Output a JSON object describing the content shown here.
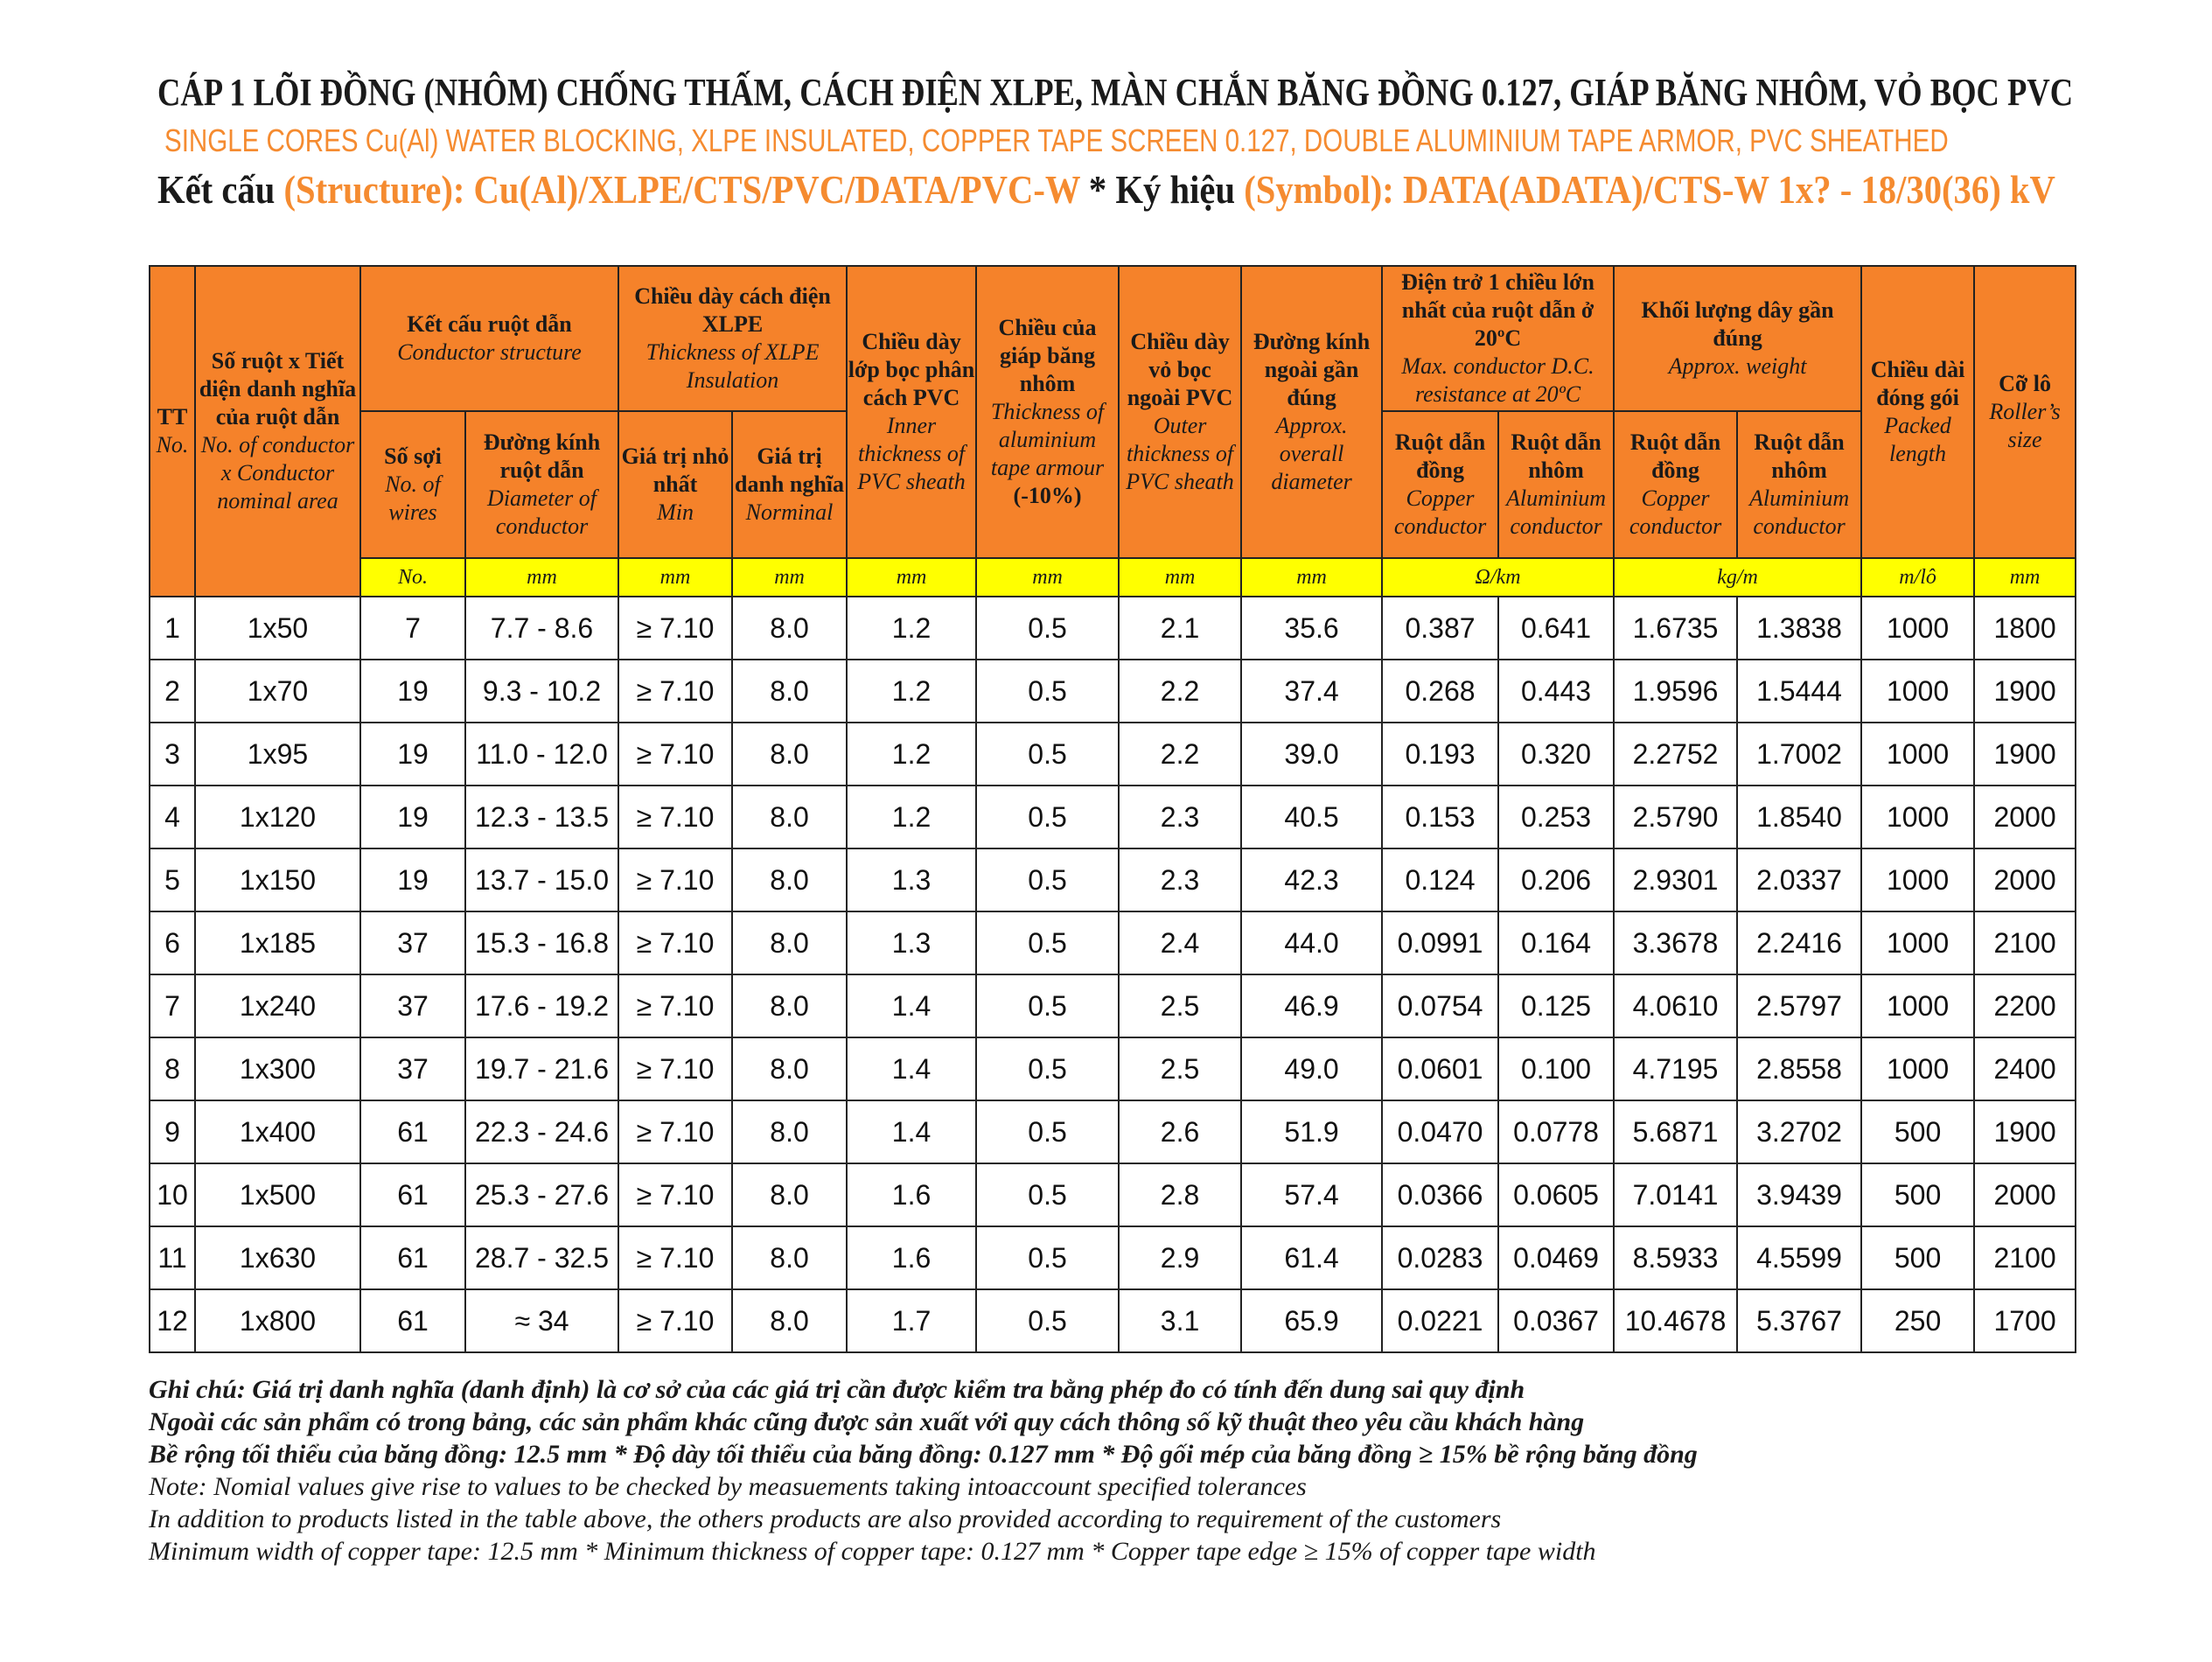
{
  "header": {
    "title": "CÁP 1 LÕI ĐỒNG (NHÔM) CHỐNG THẤM, CÁCH ĐIỆN XLPE, MÀN CHẮN BĂNG ĐỒNG 0.127, GIÁP BĂNG NHÔM,  VỎ BỌC PVC",
    "subtitle": "SINGLE CORES Cu(Al) WATER BLOCKING, XLPE INSULATED, COPPER TAPE SCREEN 0.127, DOUBLE ALUMINIUM TAPE ARMOR,  PVC SHEATHED",
    "structure_label": "Kết cấu ",
    "structure_value": "(Structure): Cu(Al)/XLPE/CTS/PVC/DATA/PVC-W",
    "separator": " * ",
    "symbol_label": " Ký hiệu ",
    "symbol_value": "(Symbol): DATA(ADATA)/CTS-W 1x? - 18/30(36) kV"
  },
  "table": {
    "columns": [
      {
        "vi": "TT",
        "en": "No."
      },
      {
        "vi": "Số ruột x Tiết diện danh nghĩa của ruột dẫn",
        "en": "No. of conductor x Conductor nominal area"
      },
      {
        "vi": "Kết cấu ruột dẫn",
        "en": "Conductor structure"
      },
      {
        "vi": "Chiều dày cách điện XLPE",
        "en": "Thickness of XLPE Insulation"
      },
      {
        "vi": "Chiều dày lớp bọc phân cách PVC",
        "en": "Inner thickness of PVC sheath"
      },
      {
        "vi": "Chiều của giáp băng nhôm",
        "en": "Thickness of aluminium tape armour",
        "tolerance": "(-10%)"
      },
      {
        "vi": "Chiều dày vỏ bọc ngoài PVC",
        "en": "Outer thickness of PVC sheath"
      },
      {
        "vi": "Đường kính ngoài gần đúng",
        "en": "Approx. overall diameter"
      },
      {
        "vi": "Điện trở 1 chiều lớn nhất của ruột dẫn ở 20ºC",
        "en": "Max. conductor D.C. resistance at 20ºC"
      },
      {
        "vi": "Khối lượng dây gần đúng",
        "en": "Approx. weight"
      },
      {
        "vi": "Chiều dài đóng gói",
        "en": "Packed length"
      },
      {
        "vi": "Cỡ lô",
        "en": "Roller’s size"
      }
    ],
    "subcolumns": [
      {
        "vi": "Số sợi",
        "en": "No. of wires"
      },
      {
        "vi": "Đường kính ruột dẫn",
        "en": "Diameter of conductor"
      },
      {
        "vi": "Giá trị nhỏ nhất",
        "en": "Min"
      },
      {
        "vi": "Giá trị danh nghĩa",
        "en": "Norminal"
      },
      {
        "vi": "Ruột dẫn đồng",
        "en": "Copper conductor"
      },
      {
        "vi": "Ruột dẫn nhôm",
        "en": "Aluminium conductor"
      },
      {
        "vi": "Ruột dẫn đồng",
        "en": "Copper conductor"
      },
      {
        "vi": "Ruột dẫn nhôm",
        "en": "Aluminium conductor"
      }
    ],
    "units": [
      "No.",
      "mm",
      "mm",
      "mm",
      "mm",
      "mm",
      "mm",
      "mm",
      "Ω/km",
      "kg/m",
      "m/lô",
      "mm"
    ],
    "rows": [
      [
        "1",
        "1x50",
        "7",
        "7.7 - 8.6",
        "≥ 7.10",
        "8.0",
        "1.2",
        "0.5",
        "2.1",
        "35.6",
        "0.387",
        "0.641",
        "1.6735",
        "1.3838",
        "1000",
        "1800"
      ],
      [
        "2",
        "1x70",
        "19",
        "9.3 - 10.2",
        "≥ 7.10",
        "8.0",
        "1.2",
        "0.5",
        "2.2",
        "37.4",
        "0.268",
        "0.443",
        "1.9596",
        "1.5444",
        "1000",
        "1900"
      ],
      [
        "3",
        "1x95",
        "19",
        "11.0 - 12.0",
        "≥ 7.10",
        "8.0",
        "1.2",
        "0.5",
        "2.2",
        "39.0",
        "0.193",
        "0.320",
        "2.2752",
        "1.7002",
        "1000",
        "1900"
      ],
      [
        "4",
        "1x120",
        "19",
        "12.3 - 13.5",
        "≥ 7.10",
        "8.0",
        "1.2",
        "0.5",
        "2.3",
        "40.5",
        "0.153",
        "0.253",
        "2.5790",
        "1.8540",
        "1000",
        "2000"
      ],
      [
        "5",
        "1x150",
        "19",
        "13.7 - 15.0",
        "≥ 7.10",
        "8.0",
        "1.3",
        "0.5",
        "2.3",
        "42.3",
        "0.124",
        "0.206",
        "2.9301",
        "2.0337",
        "1000",
        "2000"
      ],
      [
        "6",
        "1x185",
        "37",
        "15.3 - 16.8",
        "≥ 7.10",
        "8.0",
        "1.3",
        "0.5",
        "2.4",
        "44.0",
        "0.0991",
        "0.164",
        "3.3678",
        "2.2416",
        "1000",
        "2100"
      ],
      [
        "7",
        "1x240",
        "37",
        "17.6 - 19.2",
        "≥ 7.10",
        "8.0",
        "1.4",
        "0.5",
        "2.5",
        "46.9",
        "0.0754",
        "0.125",
        "4.0610",
        "2.5797",
        "1000",
        "2200"
      ],
      [
        "8",
        "1x300",
        "37",
        "19.7 - 21.6",
        "≥ 7.10",
        "8.0",
        "1.4",
        "0.5",
        "2.5",
        "49.0",
        "0.0601",
        "0.100",
        "4.7195",
        "2.8558",
        "1000",
        "2400"
      ],
      [
        "9",
        "1x400",
        "61",
        "22.3 - 24.6",
        "≥ 7.10",
        "8.0",
        "1.4",
        "0.5",
        "2.6",
        "51.9",
        "0.0470",
        "0.0778",
        "5.6871",
        "3.2702",
        "500",
        "1900"
      ],
      [
        "10",
        "1x500",
        "61",
        "25.3 - 27.6",
        "≥ 7.10",
        "8.0",
        "1.6",
        "0.5",
        "2.8",
        "57.4",
        "0.0366",
        "0.0605",
        "7.0141",
        "3.9439",
        "500",
        "2000"
      ],
      [
        "11",
        "1x630",
        "61",
        "28.7 - 32.5",
        "≥ 7.10",
        "8.0",
        "1.6",
        "0.5",
        "2.9",
        "61.4",
        "0.0283",
        "0.0469",
        "8.5933",
        "4.5599",
        "500",
        "2100"
      ],
      [
        "12",
        "1x800",
        "61",
        "≈ 34",
        "≥ 7.10",
        "8.0",
        "1.7",
        "0.5",
        "3.1",
        "65.9",
        "0.0221",
        "0.0367",
        "10.4678",
        "5.3767",
        "250",
        "1700"
      ]
    ]
  },
  "notes": [
    "Ghi chú: Giá trị danh nghĩa (danh định) là cơ sở của các giá trị cần được kiểm tra bằng phép đo có tính đến dung sai quy định",
    "Ngoài các sản phẩm có trong bảng, các sản phẩm khác cũng được sản xuất với quy cách thông số kỹ thuật theo yêu cầu khách hàng",
    "Bề rộng tối thiểu của băng đồng: 12.5 mm * Độ dày tối thiểu của băng đồng: 0.127 mm * Độ gối mép của băng đồng ≥ 15% bề rộng băng đồng",
    "Note: Nomial values give rise to values to be checked by measuements taking intoaccount specified tolerances",
    "In addition to products listed in the table above, the others products are also provided according to requirement of the customers",
    "Minimum width of copper tape: 12.5 mm * Minimum thickness of copper tape: 0.127 mm * Copper tape edge ≥ 15% of copper tape width"
  ]
}
